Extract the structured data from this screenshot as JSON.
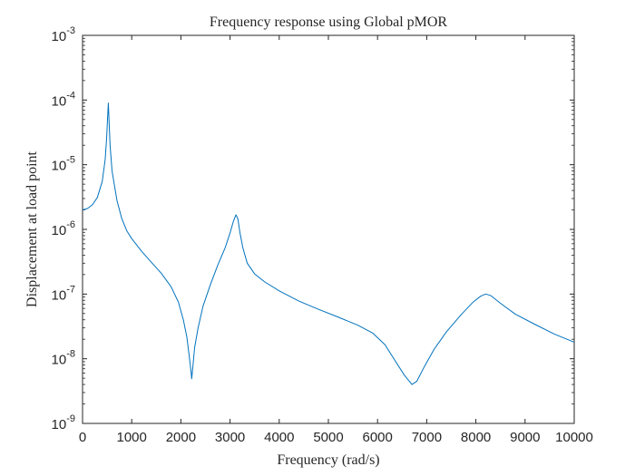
{
  "chart_data": {
    "type": "line",
    "title": "Frequency response using Global pMOR",
    "xlabel": "Frequency (rad/s)",
    "ylabel": "Displacement at load point",
    "xlim": [
      0,
      10000
    ],
    "ylim": [
      1e-09,
      0.001
    ],
    "yscale": "log",
    "x_ticks": [
      0,
      1000,
      2000,
      3000,
      4000,
      5000,
      6000,
      7000,
      8000,
      9000,
      10000
    ],
    "x_tick_labels": [
      "0",
      "1000",
      "2000",
      "3000",
      "4000",
      "5000",
      "6000",
      "7000",
      "8000",
      "9000",
      "10000"
    ],
    "y_ticks": [
      {
        "value": 1e-09,
        "base": "10",
        "exp": "-9"
      },
      {
        "value": 1e-08,
        "base": "10",
        "exp": "-8"
      },
      {
        "value": 1e-07,
        "base": "10",
        "exp": "-7"
      },
      {
        "value": 1e-06,
        "base": "10",
        "exp": "-6"
      },
      {
        "value": 1e-05,
        "base": "10",
        "exp": "-5"
      },
      {
        "value": 0.0001,
        "base": "10",
        "exp": "-4"
      },
      {
        "value": 0.001,
        "base": "10",
        "exp": "-3"
      }
    ],
    "series": [
      {
        "name": "response",
        "color": "#0072BD",
        "points": [
          [
            0,
            2e-06
          ],
          [
            100,
            2.1e-06
          ],
          [
            200,
            2.4e-06
          ],
          [
            300,
            3.1e-06
          ],
          [
            400,
            5.5e-06
          ],
          [
            460,
            1.2e-05
          ],
          [
            490,
            2.6e-05
          ],
          [
            510,
            5.5e-05
          ],
          [
            525,
            9e-05
          ],
          [
            540,
            4.5e-05
          ],
          [
            560,
            2e-05
          ],
          [
            600,
            8e-06
          ],
          [
            700,
            2.8e-06
          ],
          [
            800,
            1.45e-06
          ],
          [
            900,
            9.5e-07
          ],
          [
            1000,
            7.2e-07
          ],
          [
            1200,
            4.6e-07
          ],
          [
            1400,
            3.1e-07
          ],
          [
            1600,
            2.1e-07
          ],
          [
            1800,
            1.3e-07
          ],
          [
            1950,
            7.5e-08
          ],
          [
            2050,
            4e-08
          ],
          [
            2120,
            2.2e-08
          ],
          [
            2170,
            1.1e-08
          ],
          [
            2210,
            6e-09
          ],
          [
            2220,
            4.9e-09
          ],
          [
            2240,
            7e-09
          ],
          [
            2280,
            1.5e-08
          ],
          [
            2350,
            3e-08
          ],
          [
            2450,
            6.5e-08
          ],
          [
            2600,
            1.4e-07
          ],
          [
            2750,
            2.8e-07
          ],
          [
            2900,
            5.2e-07
          ],
          [
            3000,
            8.8e-07
          ],
          [
            3070,
            1.35e-06
          ],
          [
            3120,
            1.68e-06
          ],
          [
            3160,
            1.45e-06
          ],
          [
            3200,
            9e-07
          ],
          [
            3260,
            5.2e-07
          ],
          [
            3350,
            3e-07
          ],
          [
            3500,
            2.05e-07
          ],
          [
            3700,
            1.55e-07
          ],
          [
            4000,
            1.12e-07
          ],
          [
            4400,
            7.8e-08
          ],
          [
            4800,
            5.8e-08
          ],
          [
            5200,
            4.4e-08
          ],
          [
            5600,
            3.3e-08
          ],
          [
            5900,
            2.5e-08
          ],
          [
            6150,
            1.65e-08
          ],
          [
            6350,
            9.5e-09
          ],
          [
            6550,
            5.5e-09
          ],
          [
            6700,
            4e-09
          ],
          [
            6800,
            4.5e-09
          ],
          [
            6950,
            7.5e-09
          ],
          [
            7150,
            1.4e-08
          ],
          [
            7400,
            2.6e-08
          ],
          [
            7700,
            4.8e-08
          ],
          [
            7950,
            7.6e-08
          ],
          [
            8100,
            9.3e-08
          ],
          [
            8200,
            1e-07
          ],
          [
            8300,
            9.5e-08
          ],
          [
            8500,
            7.2e-08
          ],
          [
            8800,
            4.9e-08
          ],
          [
            9200,
            3.4e-08
          ],
          [
            9600,
            2.4e-08
          ],
          [
            10000,
            1.8e-08
          ]
        ]
      }
    ]
  }
}
